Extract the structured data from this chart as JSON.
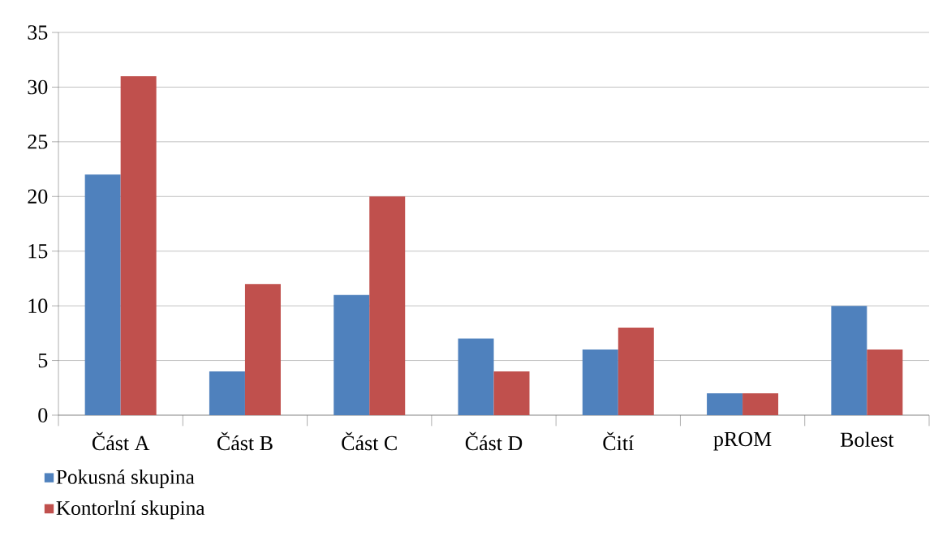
{
  "chart_data": {
    "type": "bar",
    "categories": [
      "Část A",
      "Část B",
      "Část C",
      "Část D",
      "Čití",
      "pROM",
      "Bolest"
    ],
    "series": [
      {
        "name": "Pokusná skupina",
        "color": "#4f81bd",
        "values": [
          22,
          4,
          11,
          7,
          6,
          2,
          10
        ]
      },
      {
        "name": "Kontorlní skupina",
        "color": "#c0504d",
        "values": [
          31,
          12,
          20,
          4,
          8,
          2,
          6
        ]
      }
    ],
    "ylim": [
      0,
      35
    ],
    "yticks": [
      0,
      5,
      10,
      15,
      20,
      25,
      30,
      35
    ],
    "grid": "y",
    "legend": "bottom left"
  }
}
